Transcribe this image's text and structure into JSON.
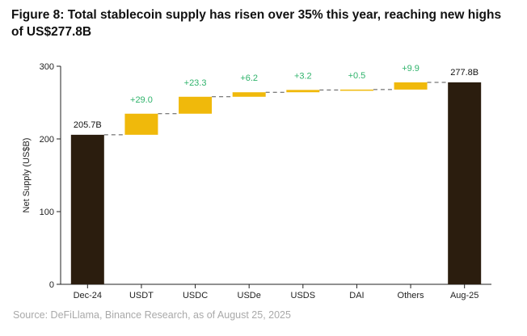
{
  "figure": {
    "title": "Figure 8: Total stablecoin supply has risen over 35% this year, reaching new highs of US$277.8B",
    "source": "Source: DeFiLlama, Binance Research, as of August 25, 2025"
  },
  "chart_data": {
    "type": "bar",
    "subtype": "waterfall",
    "title": "",
    "xlabel": "",
    "ylabel": "Net Supply (US$B)",
    "ylim": [
      0,
      300
    ],
    "yticks": [
      0,
      100,
      200,
      300
    ],
    "grid": false,
    "legend": "none",
    "categories": [
      "Dec-24",
      "USDT",
      "USDC",
      "USDe",
      "USDS",
      "DAI",
      "Others",
      "Aug-25"
    ],
    "steps": [
      {
        "category": "Dec-24",
        "kind": "total",
        "value": 205.7,
        "label": "205.7B"
      },
      {
        "category": "USDT",
        "kind": "delta",
        "value": 29.0,
        "label": "+29.0"
      },
      {
        "category": "USDC",
        "kind": "delta",
        "value": 23.3,
        "label": "+23.3"
      },
      {
        "category": "USDe",
        "kind": "delta",
        "value": 6.2,
        "label": "+6.2"
      },
      {
        "category": "USDS",
        "kind": "delta",
        "value": 3.2,
        "label": "+3.2"
      },
      {
        "category": "DAI",
        "kind": "delta",
        "value": 0.5,
        "label": "+0.5"
      },
      {
        "category": "Others",
        "kind": "delta",
        "value": 9.9,
        "label": "+9.9"
      },
      {
        "category": "Aug-25",
        "kind": "total",
        "value": 277.8,
        "label": "277.8B"
      }
    ],
    "colors": {
      "total": "#2b1d0e",
      "increase": "#f0b90b",
      "delta_label": "#2fb36b",
      "connector": "#555555"
    }
  }
}
